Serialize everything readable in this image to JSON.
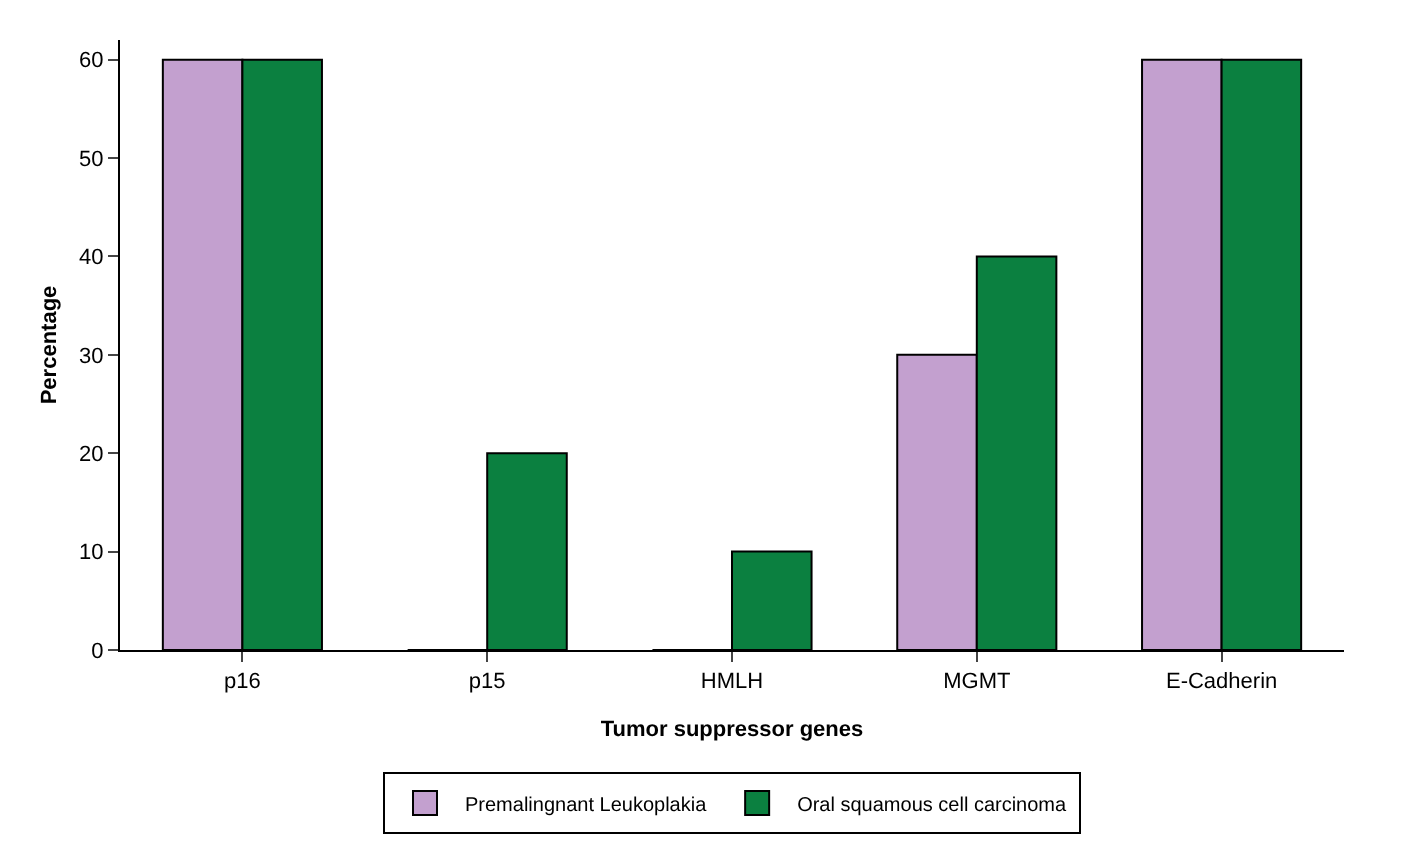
{
  "chart_data": {
    "type": "bar",
    "xlabel": "Tumor suppressor genes",
    "ylabel": "Percentage",
    "categories": [
      "p16",
      "p15",
      "HMLH",
      "MGMT",
      "E-Cadherin"
    ],
    "series": [
      {
        "name": "Premalingnant Leukoplakia",
        "color": "#c3a0cf",
        "values": [
          60,
          0,
          0,
          30,
          60
        ]
      },
      {
        "name": "Oral squamous cell carcinoma",
        "color": "#0b8040",
        "values": [
          60,
          20,
          10,
          40,
          60
        ]
      }
    ],
    "ylim": [
      0,
      62
    ],
    "yticks": [
      0,
      10,
      20,
      30,
      40,
      50,
      60
    ],
    "grid": false,
    "legend": "bottom"
  }
}
